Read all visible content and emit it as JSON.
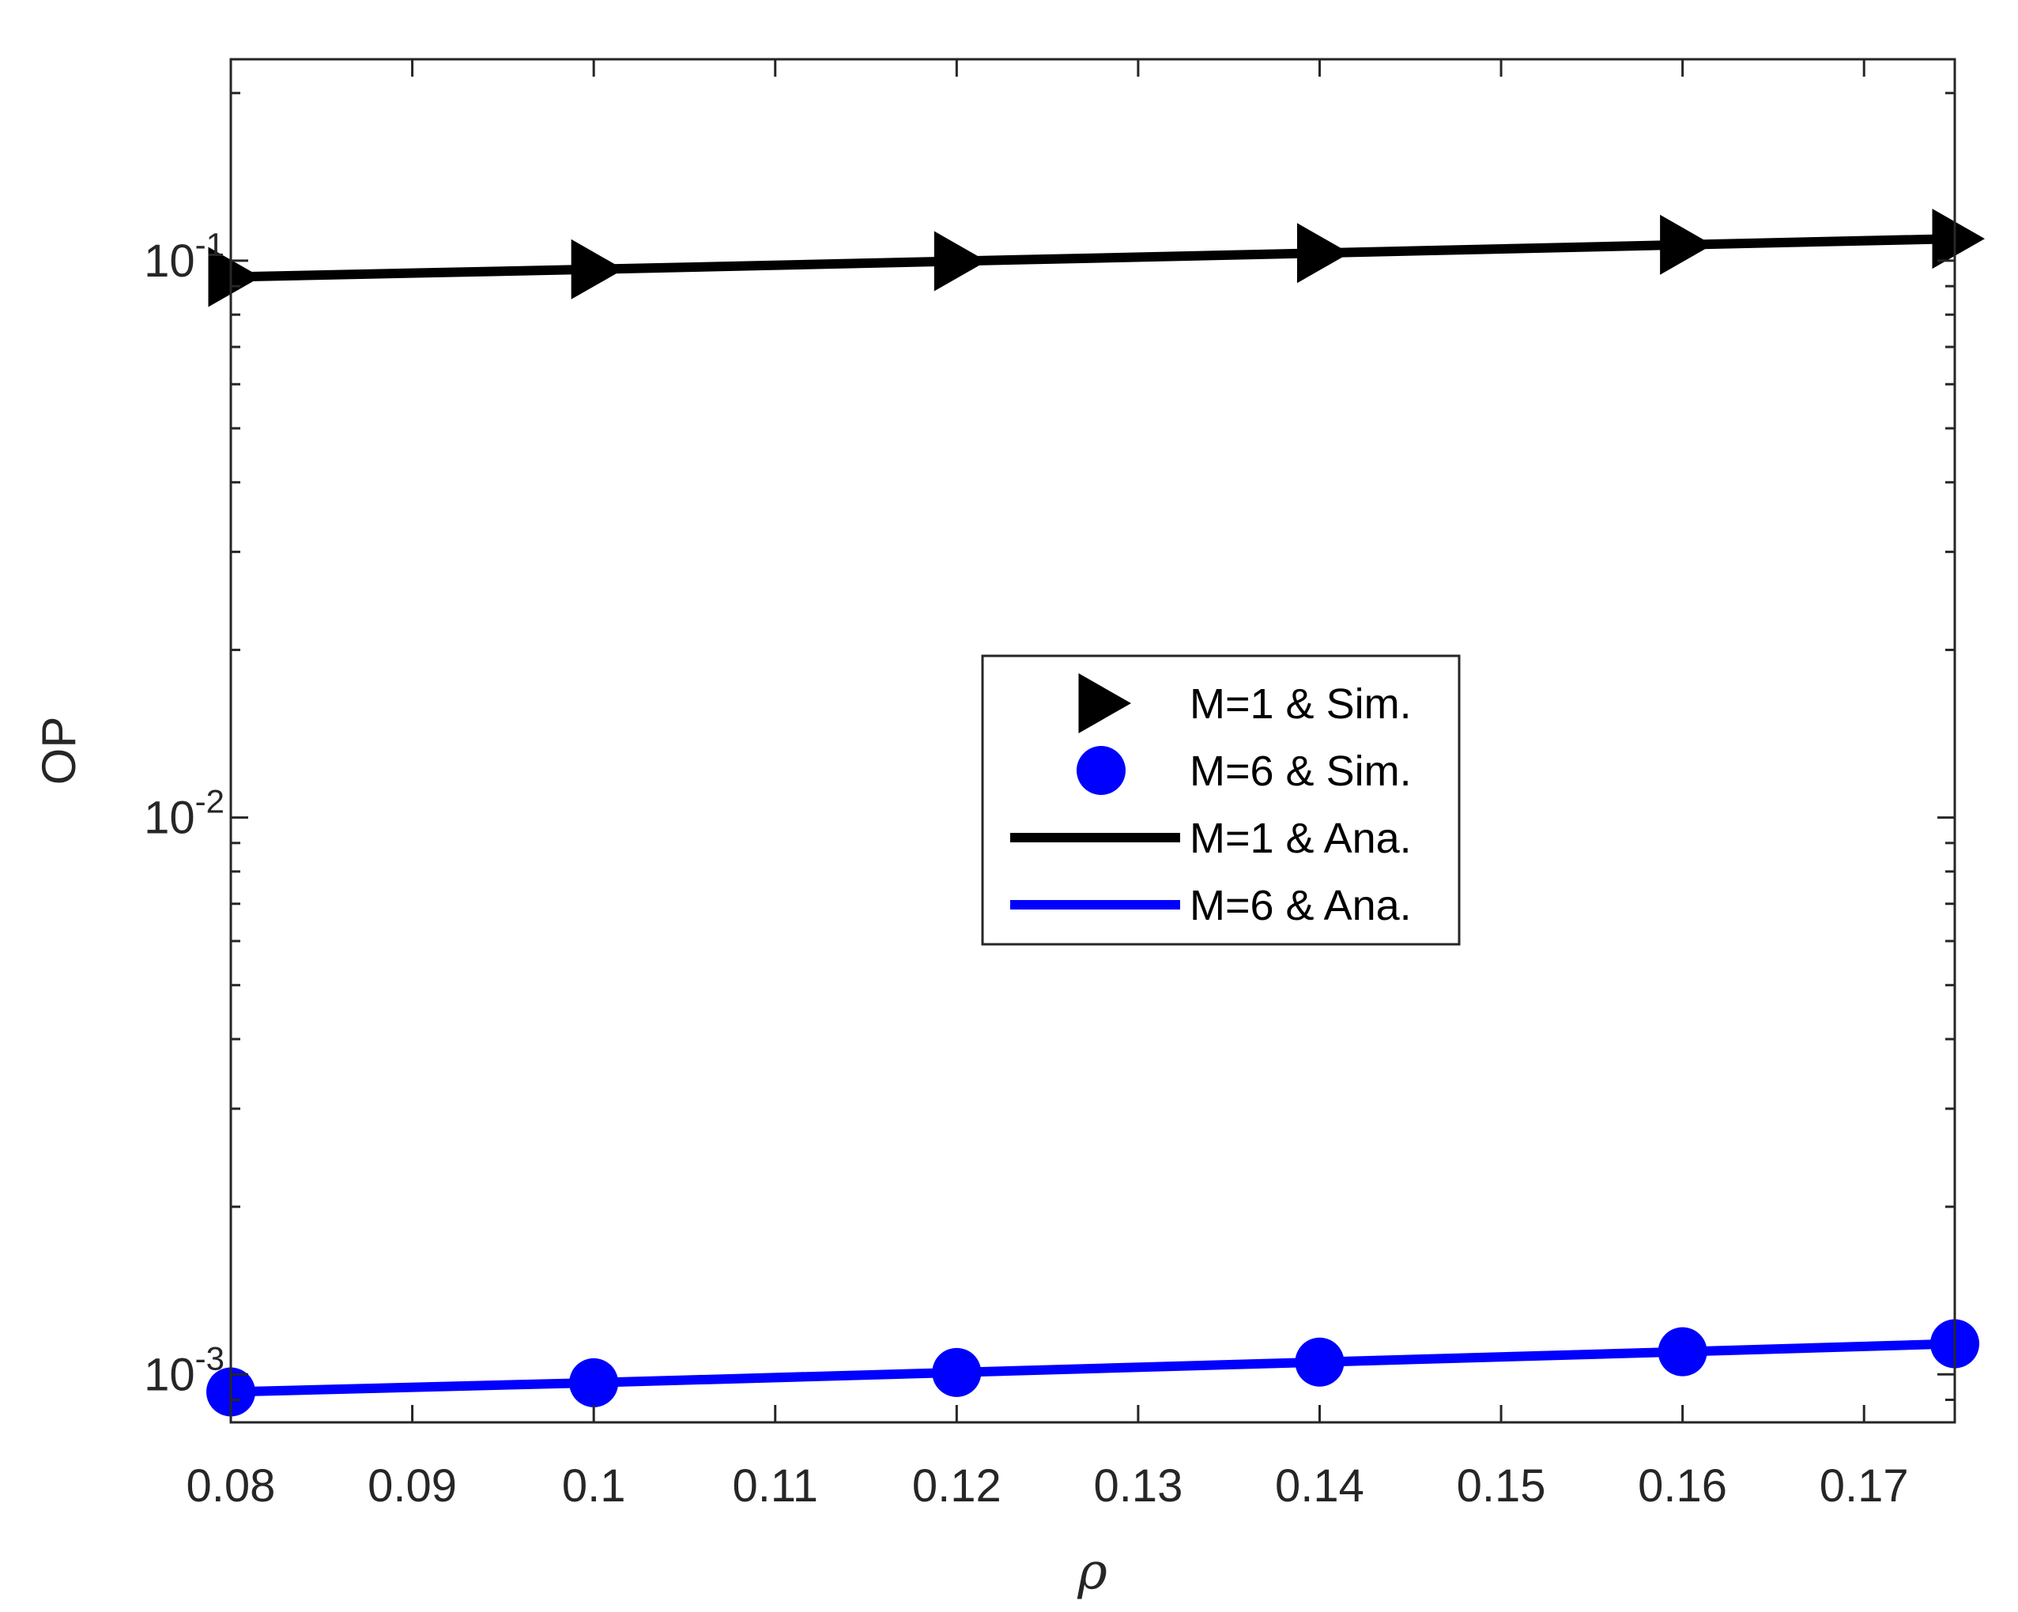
{
  "chart_data": {
    "type": "line",
    "title": "",
    "xlabel": "ρ",
    "ylabel": "OP",
    "xlim": [
      0.08,
      0.175
    ],
    "ylim": [
      0.00082,
      0.23
    ],
    "yscale": "log",
    "grid": false,
    "legend_position": "center-right",
    "x_ticks": [
      0.08,
      0.09,
      0.1,
      0.11,
      0.12,
      0.13,
      0.14,
      0.15,
      0.16,
      0.17
    ],
    "x_tick_labels": [
      "0.08",
      "0.09",
      "0.1",
      "0.11",
      "0.12",
      "0.13",
      "0.14",
      "0.15",
      "0.16",
      "0.17"
    ],
    "y_ticks": [
      0.001,
      0.01,
      0.1
    ],
    "y_tick_bases": [
      "10",
      "10",
      "10"
    ],
    "y_tick_exponents": [
      "-3",
      "-2",
      "-1"
    ],
    "series": [
      {
        "name": "M=1 & Sim.",
        "kind": "markers",
        "marker": "triangle-right",
        "color": "#000000",
        "x": [
          0.08,
          0.1,
          0.12,
          0.14,
          0.16,
          0.175
        ],
        "y": [
          0.0935,
          0.0965,
          0.0998,
          0.1032,
          0.1068,
          0.1095
        ]
      },
      {
        "name": "M=6 & Sim.",
        "kind": "markers",
        "marker": "circle",
        "color": "#0000FF",
        "x": [
          0.08,
          0.1,
          0.12,
          0.14,
          0.16,
          0.175
        ],
        "y": [
          0.00093,
          0.000966,
          0.001008,
          0.001052,
          0.001098,
          0.001135
        ]
      },
      {
        "name": "M=1 & Ana.",
        "kind": "line",
        "color": "#000000",
        "x": [
          0.08,
          0.1,
          0.12,
          0.14,
          0.16,
          0.175
        ],
        "y": [
          0.0935,
          0.0965,
          0.0998,
          0.1032,
          0.1068,
          0.1095
        ]
      },
      {
        "name": "M=6 & Ana.",
        "kind": "line",
        "color": "#0000FF",
        "x": [
          0.08,
          0.1,
          0.12,
          0.14,
          0.16,
          0.175
        ],
        "y": [
          0.00093,
          0.000966,
          0.001008,
          0.001052,
          0.001098,
          0.001135
        ]
      }
    ]
  }
}
